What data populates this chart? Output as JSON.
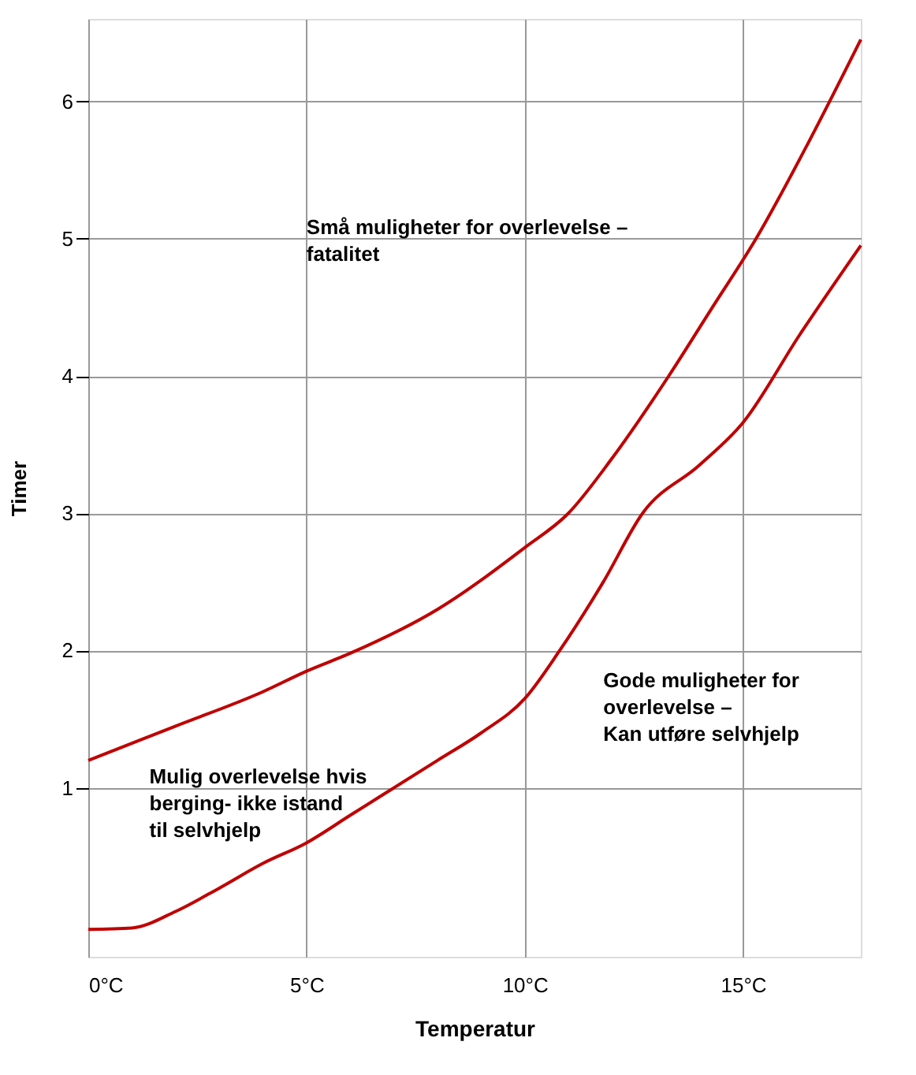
{
  "chart_data": {
    "type": "line",
    "xlabel": "Temperatur",
    "ylabel": "Timer",
    "xlim": [
      0,
      17.7
    ],
    "ylim": [
      -0.23,
      6.6
    ],
    "xticks": [
      {
        "value": 0,
        "label": "0°C"
      },
      {
        "value": 5,
        "label": "5°C"
      },
      {
        "value": 10,
        "label": "10°C"
      },
      {
        "value": 15,
        "label": "15°C"
      }
    ],
    "yticks": [
      1,
      2,
      3,
      4,
      5,
      6
    ],
    "grid": true,
    "series": [
      {
        "color": "#c00000",
        "x": [
          0,
          2,
          4,
          5,
          6,
          8,
          10,
          11,
          12,
          13.3,
          14.3,
          15.3,
          16.5,
          17.7
        ],
        "values": [
          1.2,
          1.45,
          1.7,
          1.85,
          1.98,
          2.3,
          2.75,
          3.0,
          3.4,
          4.0,
          4.5,
          5.0,
          5.7,
          6.45
        ]
      },
      {
        "color": "#c00000",
        "x": [
          0,
          1,
          2,
          3,
          4,
          5,
          6,
          7,
          8,
          9,
          10,
          10.8,
          11.8,
          12.7,
          14,
          15,
          16.3,
          17.7
        ],
        "values": [
          -0.03,
          -0.02,
          0.1,
          0.27,
          0.45,
          0.6,
          0.8,
          1.0,
          1.2,
          1.4,
          1.65,
          2.0,
          2.5,
          3.0,
          3.35,
          3.66,
          4.3,
          4.95
        ]
      }
    ],
    "annotations": [
      "Små muligheter for overlevelse –\nfatalitet",
      "Mulig overlevelse hvis\nberging- ikke istand\ntil selvhjelp",
      "Gode muligheter  for\noverlevelse –\nKan utføre selvhjelp"
    ]
  }
}
